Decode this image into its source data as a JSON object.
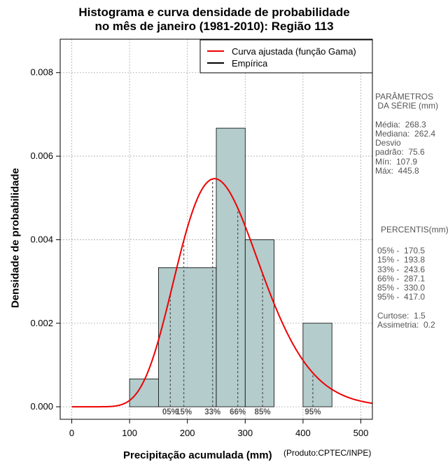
{
  "chart_data": {
    "type": "bar",
    "title_line1": "Histograma e curva densidade de probabilidade",
    "title_line2": "no mês de janeiro (1981-2010): Região 113",
    "xlabel": "Precipitação acumulada (mm)",
    "ylabel": "Densidade de probabilidade",
    "credit": "(Produto:CPTEC/INPE)",
    "xlim": [
      -20,
      520
    ],
    "ylim": [
      -0.0003,
      0.0088
    ],
    "xticks": [
      0,
      100,
      200,
      300,
      400,
      500
    ],
    "yticks": [
      0.0,
      0.002,
      0.004,
      0.006,
      0.008
    ],
    "ytick_labels": [
      "0.000",
      "0.002",
      "0.004",
      "0.006",
      "0.008"
    ],
    "grid": true,
    "bins": [
      {
        "start": 100,
        "end": 150,
        "density": 0.000667
      },
      {
        "start": 150,
        "end": 250,
        "density": 0.00333
      },
      {
        "start": 250,
        "end": 300,
        "density": 0.00667
      },
      {
        "start": 300,
        "end": 350,
        "density": 0.004
      },
      {
        "start": 400,
        "end": 450,
        "density": 0.002
      }
    ],
    "bar_color": "#b4cccc",
    "curve_color": "#ee0000",
    "gamma_fit": {
      "mean": 268.3,
      "sd": 75.6
    },
    "legend": [
      {
        "label": "Curva ajustada (função Gama)",
        "color": "#ee0000"
      },
      {
        "label": "Empírica",
        "color": "#000000"
      }
    ],
    "percentile_markers": [
      {
        "label": "05%",
        "x": 170.5
      },
      {
        "label": "15%",
        "x": 193.8
      },
      {
        "label": "33%",
        "x": 243.6
      },
      {
        "label": "66%",
        "x": 287.1
      },
      {
        "label": "85%",
        "x": 330.0
      },
      {
        "label": "95%",
        "x": 417.0
      }
    ]
  },
  "stats": {
    "header1": "PARÂMETROS",
    "header2": " DA SÉRIE (mm)",
    "media": "Média:  268.3",
    "mediana": "Mediana:  262.4",
    "desvio1": "Desvio",
    "desvio2": "padrão:  75.6",
    "min": "Mín:  107.9",
    "max": "Máx:  445.8"
  },
  "percentis": {
    "header": "PERCENTIS(mm)",
    "p05": "05% -  170.5",
    "p15": "15% -  193.8",
    "p33": "33% -  243.6",
    "p66": "66% -  287.1",
    "p85": "85% -  330.0",
    "p95": "95% -  417.0",
    "curtose": "Curtose:  1.5",
    "assimetria": "Assimetria:  0.2"
  }
}
